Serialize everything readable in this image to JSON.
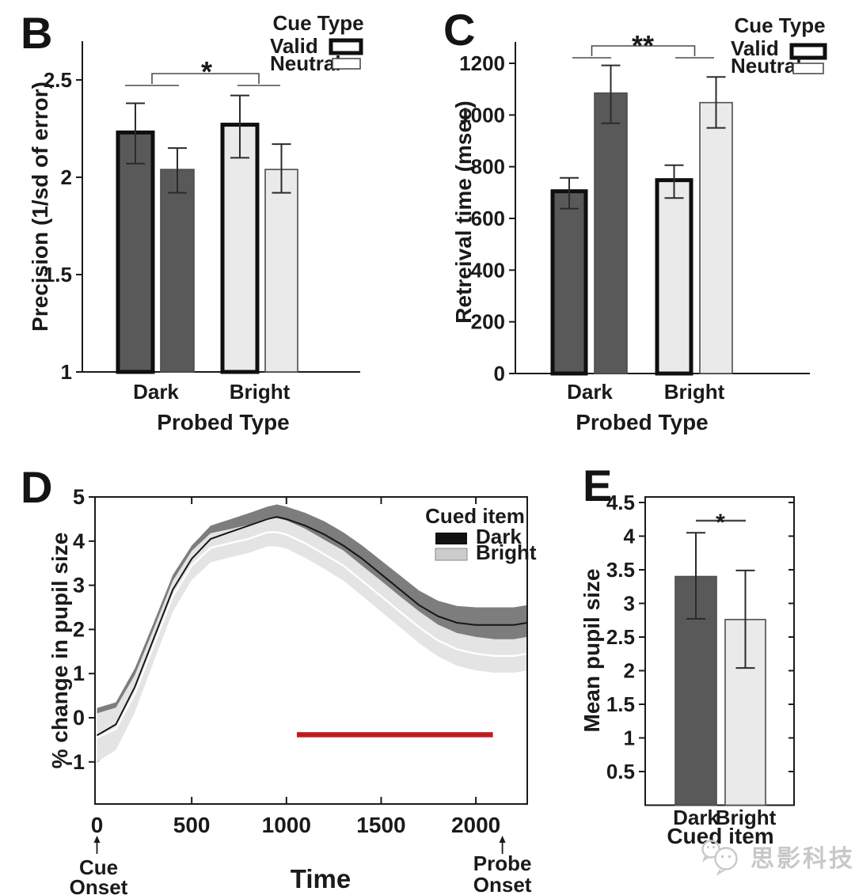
{
  "watermark": {
    "text": "思影科技"
  },
  "colors": {
    "dark_fill": "#595959",
    "light_fill": "#eaeaea",
    "valid_outline": "#0f0f0f",
    "neutral_outline": "#4d4d4d",
    "error_bar": "#2b2b2b",
    "axis": "#1a1a1a",
    "bracket": "#4a4a4a",
    "dark_band": "#7d7d7d",
    "bright_band": "#e4e4e4",
    "dark_line": "#161616",
    "bright_line": "#ffffff",
    "sig_bar_red": "#be1b20",
    "watermark_gray": "#c8c8c8"
  },
  "chart_data": [
    {
      "id": "B",
      "type": "bar",
      "panel_label": "B",
      "ylabel": "Precision (1/sd of error)",
      "xlabel": "Probed Type",
      "categories": [
        "Dark",
        "Bright"
      ],
      "ylim": [
        1,
        2.7
      ],
      "yticks": [
        1,
        1.5,
        2,
        2.5
      ],
      "legend": {
        "title": "Cue Type",
        "entries": [
          {
            "label": "Valid",
            "outline": "thick"
          },
          {
            "label": "Neutral",
            "outline": "thin"
          }
        ]
      },
      "series": [
        {
          "name": "Valid",
          "values": [
            2.23,
            2.27
          ],
          "err_low": [
            2.07,
            2.1
          ],
          "err_high": [
            2.38,
            2.42
          ]
        },
        {
          "name": "Neutral",
          "values": [
            2.04,
            2.04
          ],
          "err_low": [
            1.92,
            1.92
          ],
          "err_high": [
            2.15,
            2.17
          ]
        }
      ],
      "category_fills": [
        "#595959",
        "#eaeaea"
      ],
      "significance": {
        "label": "*",
        "compares": "Dark group vs Bright group"
      }
    },
    {
      "id": "C",
      "type": "bar",
      "panel_label": "C",
      "ylabel": "Retreival time (msec)",
      "xlabel": "Probed Type",
      "categories": [
        "Dark",
        "Bright"
      ],
      "ylim": [
        0,
        1283
      ],
      "yticks": [
        0,
        200,
        400,
        600,
        800,
        1000,
        1200
      ],
      "legend": {
        "title": "Cue Type",
        "entries": [
          {
            "label": "Valid",
            "outline": "thick"
          },
          {
            "label": "Neutral",
            "outline": "thin"
          }
        ]
      },
      "series": [
        {
          "name": "Valid",
          "values": [
            705,
            748
          ],
          "err_low": [
            638,
            679
          ],
          "err_high": [
            757,
            806
          ]
        },
        {
          "name": "Neutral",
          "values": [
            1085,
            1048
          ],
          "err_low": [
            968,
            950
          ],
          "err_high": [
            1192,
            1147
          ]
        }
      ],
      "category_fills": [
        "#595959",
        "#eaeaea"
      ],
      "significance": {
        "label": "**",
        "compares": "Dark group vs Bright group"
      }
    },
    {
      "id": "D",
      "type": "line",
      "panel_label": "D",
      "ylabel": "% change in pupil size",
      "xlabel": "Time",
      "xlim": [
        0,
        2270
      ],
      "ylim": [
        -1.95,
        5
      ],
      "xticks": [
        0,
        500,
        1000,
        1500,
        2000
      ],
      "yticks": [
        -1,
        0,
        1,
        2,
        3,
        4,
        5
      ],
      "legend": {
        "title": "Cued item",
        "entries": [
          {
            "label": "Dark",
            "swatch": "#111111"
          },
          {
            "label": "Bright",
            "swatch": "#cccccc"
          }
        ]
      },
      "annotations": {
        "cue_onset": {
          "line1": "Cue",
          "line2": "Onset",
          "x": 0
        },
        "probe_onset": {
          "line1": "Probe",
          "line2": "Onset",
          "x": 2140
        },
        "sig_bar": {
          "x0": 1055,
          "x1": 2090,
          "y": -0.38,
          "color": "#be1b20"
        }
      },
      "x": [
        0,
        100,
        200,
        300,
        400,
        500,
        600,
        700,
        800,
        900,
        950,
        1000,
        1100,
        1200,
        1300,
        1400,
        1500,
        1600,
        1700,
        1800,
        1900,
        2000,
        2100,
        2200,
        2270
      ],
      "series": [
        {
          "name": "Dark",
          "line_color": "#161616",
          "band_color": "#7d7d7d",
          "y": [
            -0.4,
            -0.15,
            0.7,
            1.8,
            2.9,
            3.6,
            4.05,
            4.2,
            4.35,
            4.5,
            4.55,
            4.5,
            4.35,
            4.15,
            3.9,
            3.6,
            3.25,
            2.9,
            2.55,
            2.3,
            2.15,
            2.1,
            2.1,
            2.1,
            2.15
          ],
          "band": [
            0.62,
            0.5,
            0.42,
            0.36,
            0.33,
            0.3,
            0.3,
            0.29,
            0.28,
            0.28,
            0.28,
            0.28,
            0.29,
            0.3,
            0.3,
            0.3,
            0.31,
            0.32,
            0.33,
            0.35,
            0.38,
            0.4,
            0.4,
            0.4,
            0.4
          ]
        },
        {
          "name": "Bright",
          "line_color": "#ffffff",
          "band_color": "#e4e4e4",
          "y": [
            -0.45,
            -0.25,
            0.55,
            1.65,
            2.75,
            3.45,
            3.85,
            3.95,
            4.05,
            4.2,
            4.2,
            4.15,
            3.95,
            3.7,
            3.45,
            3.1,
            2.75,
            2.4,
            2.05,
            1.75,
            1.55,
            1.45,
            1.4,
            1.4,
            1.45
          ],
          "band": [
            0.55,
            0.48,
            0.42,
            0.37,
            0.35,
            0.33,
            0.33,
            0.32,
            0.32,
            0.32,
            0.32,
            0.32,
            0.33,
            0.33,
            0.34,
            0.34,
            0.35,
            0.35,
            0.36,
            0.36,
            0.37,
            0.38,
            0.38,
            0.38,
            0.38
          ]
        }
      ]
    },
    {
      "id": "E",
      "type": "bar",
      "panel_label": "E",
      "ylabel": "Mean pupil size",
      "xlabel": "Cued item",
      "categories": [
        "Dark",
        "Bright"
      ],
      "ylim": [
        0,
        4.58
      ],
      "yticks": [
        0.5,
        1,
        1.5,
        2,
        2.5,
        3,
        3.5,
        4,
        4.5
      ],
      "series": [
        {
          "name": "Mean",
          "values": [
            3.4,
            2.76
          ],
          "err_low": [
            2.77,
            2.04
          ],
          "err_high": [
            4.05,
            3.49
          ]
        }
      ],
      "category_fills": [
        "#595959",
        "#eaeaea"
      ],
      "significance": {
        "label": "*",
        "compares": "Dark vs Bright"
      }
    }
  ]
}
